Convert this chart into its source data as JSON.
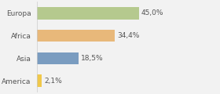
{
  "categories": [
    "Europa",
    "Africa",
    "Asia",
    "America"
  ],
  "values": [
    45.0,
    34.4,
    18.5,
    2.1
  ],
  "labels": [
    "45,0%",
    "34,4%",
    "18,5%",
    "2,1%"
  ],
  "bar_colors": [
    "#b5c98e",
    "#e8b87a",
    "#7a9cc0",
    "#f0c84a"
  ],
  "background_color": "#f2f2f2",
  "xlim": [
    0,
    80
  ],
  "label_fontsize": 6.5,
  "category_fontsize": 6.5,
  "bar_height": 0.55
}
